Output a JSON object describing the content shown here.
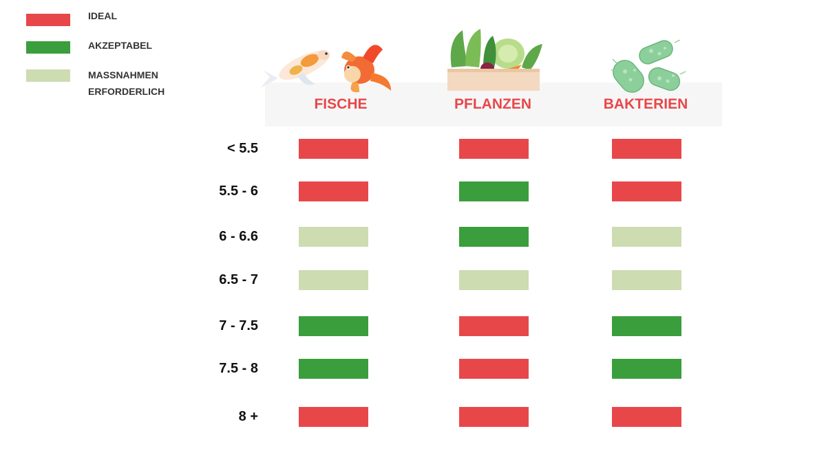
{
  "colors": {
    "ideal": "#e8474a",
    "acceptable": "#3a9e3c",
    "action_required": "#cddcb1",
    "header_text": "#e8474a",
    "header_band": "#f6f6f6"
  },
  "legend": [
    {
      "key": "ideal",
      "label": "IDEAL"
    },
    {
      "key": "acceptable",
      "label": "AKZEPTABEL"
    },
    {
      "key": "action_required",
      "label_lines": [
        "MASSNAHMEN",
        "ERFORDERLICH"
      ]
    }
  ],
  "columns": [
    {
      "label": "FISCHE",
      "icon": "fish-icon"
    },
    {
      "label": "PFLANZEN",
      "icon": "vegetables-icon"
    },
    {
      "label": "BAKTERIEN",
      "icon": "bacteria-icon"
    }
  ],
  "rows": [
    {
      "label": "< 5.5",
      "cells": [
        "ideal",
        "ideal",
        "ideal"
      ]
    },
    {
      "label": "5.5 - 6",
      "cells": [
        "ideal",
        "acceptable",
        "ideal"
      ]
    },
    {
      "label": "6 - 6.6",
      "cells": [
        "action_required",
        "acceptable",
        "action_required"
      ]
    },
    {
      "label": "6.5 - 7",
      "cells": [
        "action_required",
        "action_required",
        "action_required"
      ]
    },
    {
      "label": "7 - 7.5",
      "cells": [
        "acceptable",
        "ideal",
        "acceptable"
      ]
    },
    {
      "label": "7.5 - 8",
      "cells": [
        "acceptable",
        "ideal",
        "acceptable"
      ]
    },
    {
      "label": "8 +",
      "cells": [
        "ideal",
        "ideal",
        "ideal"
      ]
    }
  ]
}
